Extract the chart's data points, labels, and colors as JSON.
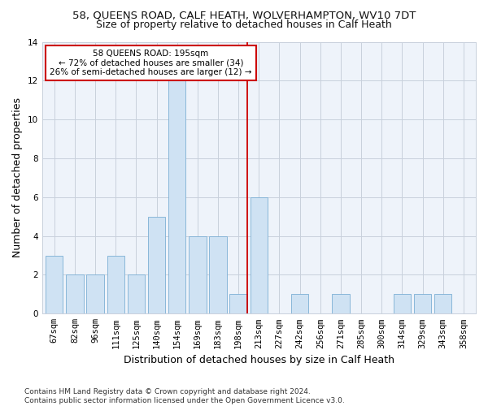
{
  "title": "58, QUEENS ROAD, CALF HEATH, WOLVERHAMPTON, WV10 7DT",
  "subtitle": "Size of property relative to detached houses in Calf Heath",
  "xlabel": "Distribution of detached houses by size in Calf Heath",
  "ylabel": "Number of detached properties",
  "bins": [
    "67sqm",
    "82sqm",
    "96sqm",
    "111sqm",
    "125sqm",
    "140sqm",
    "154sqm",
    "169sqm",
    "183sqm",
    "198sqm",
    "213sqm",
    "227sqm",
    "242sqm",
    "256sqm",
    "271sqm",
    "285sqm",
    "300sqm",
    "314sqm",
    "329sqm",
    "343sqm",
    "358sqm"
  ],
  "counts": [
    3,
    2,
    2,
    3,
    2,
    5,
    12,
    4,
    4,
    1,
    6,
    0,
    1,
    0,
    1,
    0,
    0,
    1,
    1,
    1,
    0
  ],
  "bar_color": "#cfe2f3",
  "bar_edge_color": "#7bafd4",
  "vline_color": "#cc0000",
  "annotation_text": "58 QUEENS ROAD: 195sqm\n← 72% of detached houses are smaller (34)\n26% of semi-detached houses are larger (12) →",
  "annotation_box_color": "#ffffff",
  "annotation_box_edge": "#cc0000",
  "ylim": [
    0,
    14
  ],
  "yticks": [
    0,
    2,
    4,
    6,
    8,
    10,
    12,
    14
  ],
  "footer": "Contains HM Land Registry data © Crown copyright and database right 2024.\nContains public sector information licensed under the Open Government Licence v3.0.",
  "bg_color": "#ffffff",
  "plot_bg_color": "#eef3fa",
  "grid_color": "#c8d0dc",
  "title_fontsize": 9.5,
  "subtitle_fontsize": 9,
  "axis_label_fontsize": 9,
  "tick_fontsize": 7.5,
  "footer_fontsize": 6.5
}
